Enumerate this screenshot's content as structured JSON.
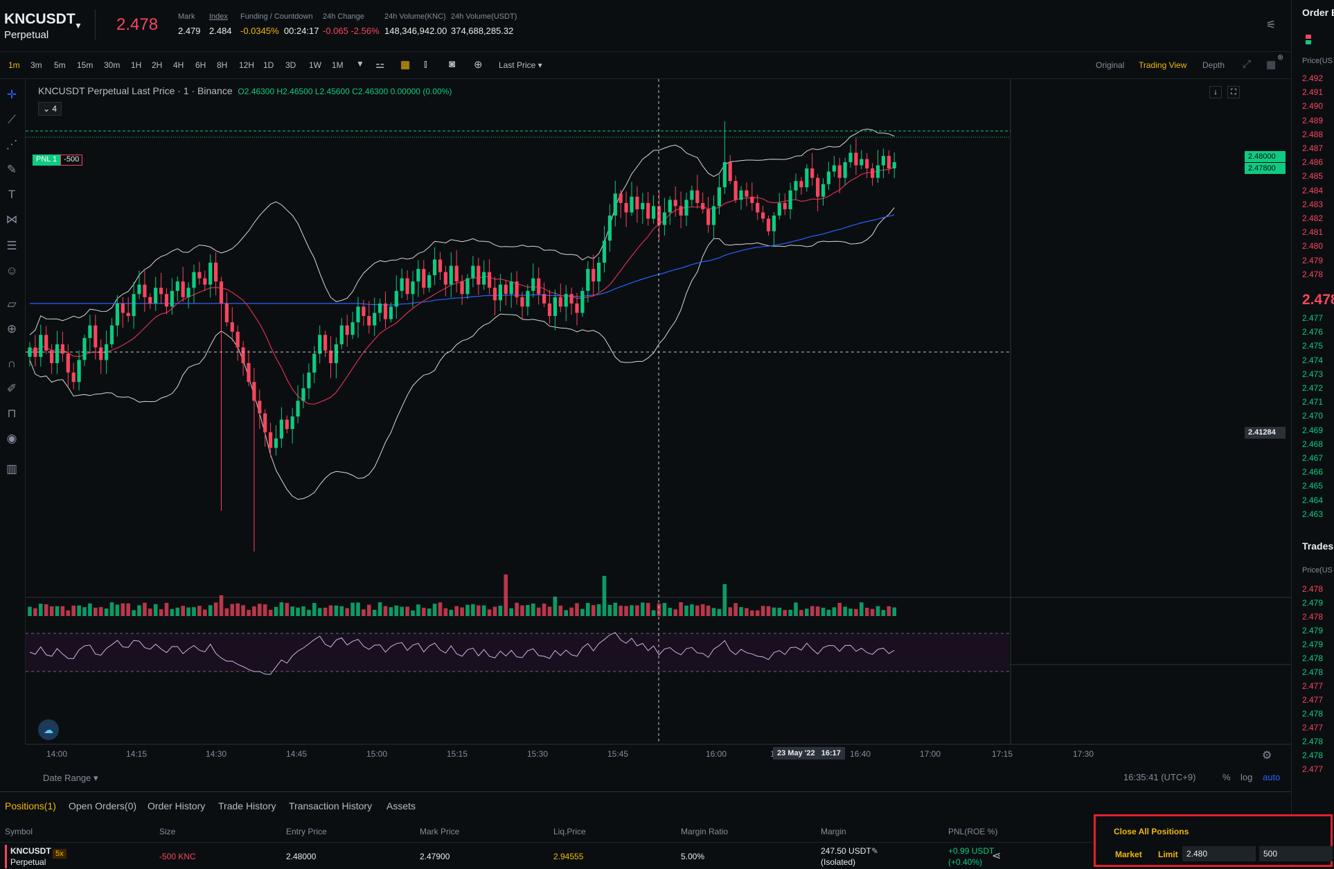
{
  "header": {
    "symbol": "KNCUSDT",
    "contract": "Perpetual",
    "last_price": "2.478",
    "stats": [
      {
        "label": "Mark",
        "value": "2.479"
      },
      {
        "label": "Index",
        "value": "2.484"
      },
      {
        "label": "Funding / Countdown",
        "value_a": "-0.0345%",
        "value_b": "00:24:17"
      },
      {
        "label": "24h Change",
        "value": "-0.065 -2.56%"
      },
      {
        "label": "24h Volume(KNC)",
        "value": "148,346,942.00"
      },
      {
        "label": "24h Volume(USDT)",
        "value": "374,688,285.32"
      }
    ]
  },
  "toolbar": {
    "intervals": [
      "1m",
      "3m",
      "5m",
      "15m",
      "30m",
      "1H",
      "2H",
      "4H",
      "6H",
      "8H",
      "12H",
      "1D",
      "3D",
      "1W",
      "1M"
    ],
    "active_interval": "1m",
    "price_type": "Last Price",
    "views": [
      "Original",
      "Trading View",
      "Depth"
    ],
    "active_view": "Trading View"
  },
  "chart": {
    "legend_title": "KNCUSDT Perpetual Last Price · 1 · Binance",
    "legend_ohlc": "O2.46300 H2.46500 L2.45600 C2.46300 0.00000 (0.00%)",
    "indicator_count": "4",
    "pnl_tag": "PNL 1",
    "pnl_qty": "-500",
    "price_tags": [
      "2.48000",
      "2.47800",
      "2.41284"
    ],
    "crosshair_date": "23 May '22",
    "crosshair_time": "16:17",
    "date_range_label": "Date Range",
    "clock": "16:35:41 (UTC+9)",
    "scale_options": [
      "%",
      "log",
      "auto"
    ],
    "time_ticks": [
      "14:00",
      "14:15",
      "14:30",
      "14:45",
      "15:00",
      "15:15",
      "15:30",
      "15:45",
      "16:00",
      "16:26",
      "16:40",
      "17:00",
      "17:15",
      "17:30"
    ]
  },
  "chart_data": {
    "type": "candlestick",
    "title": "KNCUSDT Perpetual Last Price · 1 · Binance",
    "xlabel": "",
    "ylabel": "",
    "ylim": [
      2.372,
      2.5
    ],
    "interval": "1m",
    "x_start": "13:59",
    "closes": [
      2.441,
      2.438,
      2.445,
      2.44,
      2.436,
      2.442,
      2.439,
      2.433,
      2.43,
      2.437,
      2.444,
      2.448,
      2.441,
      2.437,
      2.442,
      2.448,
      2.455,
      2.452,
      2.451,
      2.458,
      2.461,
      2.457,
      2.455,
      2.46,
      2.458,
      2.454,
      2.459,
      2.462,
      2.457,
      2.46,
      2.465,
      2.463,
      2.461,
      2.468,
      2.462,
      2.455,
      2.449,
      2.446,
      2.441,
      2.436,
      2.43,
      2.424,
      2.42,
      2.414,
      2.409,
      2.412,
      2.418,
      2.415,
      2.419,
      2.424,
      2.428,
      2.433,
      2.439,
      2.445,
      2.44,
      2.436,
      2.442,
      2.448,
      2.445,
      2.449,
      2.454,
      2.451,
      2.448,
      2.452,
      2.455,
      2.45,
      2.454,
      2.459,
      2.463,
      2.458,
      2.462,
      2.466,
      2.46,
      2.464,
      2.469,
      2.465,
      2.461,
      2.467,
      2.462,
      2.458,
      2.463,
      2.467,
      2.461,
      2.465,
      2.46,
      2.456,
      2.461,
      2.458,
      2.462,
      2.457,
      2.454,
      2.459,
      2.463,
      2.458,
      2.455,
      2.451,
      2.457,
      2.454,
      2.458,
      2.455,
      2.452,
      2.459,
      2.466,
      2.462,
      2.468,
      2.475,
      2.483,
      2.49,
      2.487,
      2.484,
      2.489,
      2.485,
      2.487,
      2.482,
      2.486,
      2.48,
      2.484,
      2.488,
      2.486,
      2.483,
      2.488,
      2.491,
      2.487,
      2.485,
      2.48,
      2.486,
      2.492,
      2.5,
      2.494,
      2.488,
      2.491,
      2.489,
      2.487,
      2.484,
      2.482,
      2.478,
      2.483,
      2.487,
      2.485,
      2.491,
      2.494,
      2.492,
      2.498,
      2.495,
      2.489,
      2.493,
      2.497,
      2.499,
      2.495,
      2.5,
      2.503,
      2.499,
      2.501,
      2.498,
      2.495,
      2.499,
      2.502,
      2.498,
      2.5
    ],
    "series": [
      {
        "name": "MA",
        "color": "#d9304f"
      },
      {
        "name": "BOLL",
        "color": "#d8d8d8"
      },
      {
        "name": "EMA",
        "color": "#2962ff"
      },
      {
        "name": "RSI",
        "color": "#c9b6e4"
      }
    ]
  },
  "orderbook": {
    "title": "Order B",
    "price_header": "Price(US",
    "asks": [
      "2.492",
      "2.491",
      "2.490",
      "2.489",
      "2.488",
      "2.487",
      "2.486",
      "2.485",
      "2.484",
      "2.483",
      "2.482",
      "2.481",
      "2.480",
      "2.479",
      "2.478"
    ],
    "mid": "2.478",
    "bids": [
      "2.477",
      "2.476",
      "2.475",
      "2.474",
      "2.473",
      "2.472",
      "2.471",
      "2.470",
      "2.469",
      "2.468",
      "2.467",
      "2.466",
      "2.465",
      "2.464",
      "2.463"
    ],
    "trades_title": "Trades",
    "trades_header": "Price(US",
    "trades": [
      {
        "p": "2.478",
        "s": "sell"
      },
      {
        "p": "2.479",
        "s": "buy"
      },
      {
        "p": "2.478",
        "s": "sell"
      },
      {
        "p": "2.479",
        "s": "buy"
      },
      {
        "p": "2.479",
        "s": "buy"
      },
      {
        "p": "2.478",
        "s": "buy"
      },
      {
        "p": "2.478",
        "s": "buy"
      },
      {
        "p": "2.477",
        "s": "sell"
      },
      {
        "p": "2.477",
        "s": "sell"
      },
      {
        "p": "2.478",
        "s": "buy"
      },
      {
        "p": "2.477",
        "s": "sell"
      },
      {
        "p": "2.478",
        "s": "buy"
      },
      {
        "p": "2.478",
        "s": "buy"
      },
      {
        "p": "2.477",
        "s": "sell"
      }
    ]
  },
  "bottom": {
    "tabs": [
      "Positions(1)",
      "Open Orders(0)",
      "Order History",
      "Trade History",
      "Transaction History",
      "Assets"
    ],
    "columns": [
      "Symbol",
      "Size",
      "Entry Price",
      "Mark Price",
      "Liq.Price",
      "Margin Ratio",
      "Margin",
      "PNL(ROE %)"
    ],
    "position": {
      "symbol": "KNCUSDT",
      "contract": "Perpetual",
      "leverage": "5x",
      "size": "-500 KNC",
      "entry": "2.48000",
      "mark": "2.47900",
      "liq": "2.94555",
      "margin_ratio": "5.00%",
      "margin": "247.50 USDT",
      "margin_mode": "(Isolated)",
      "pnl": "+0.99 USDT",
      "roe": "(+0.40%)"
    },
    "close_all_label": "Close All Positions",
    "market_label": "Market",
    "limit_label": "Limit",
    "limit_price": "2.480",
    "limit_qty": "500"
  }
}
